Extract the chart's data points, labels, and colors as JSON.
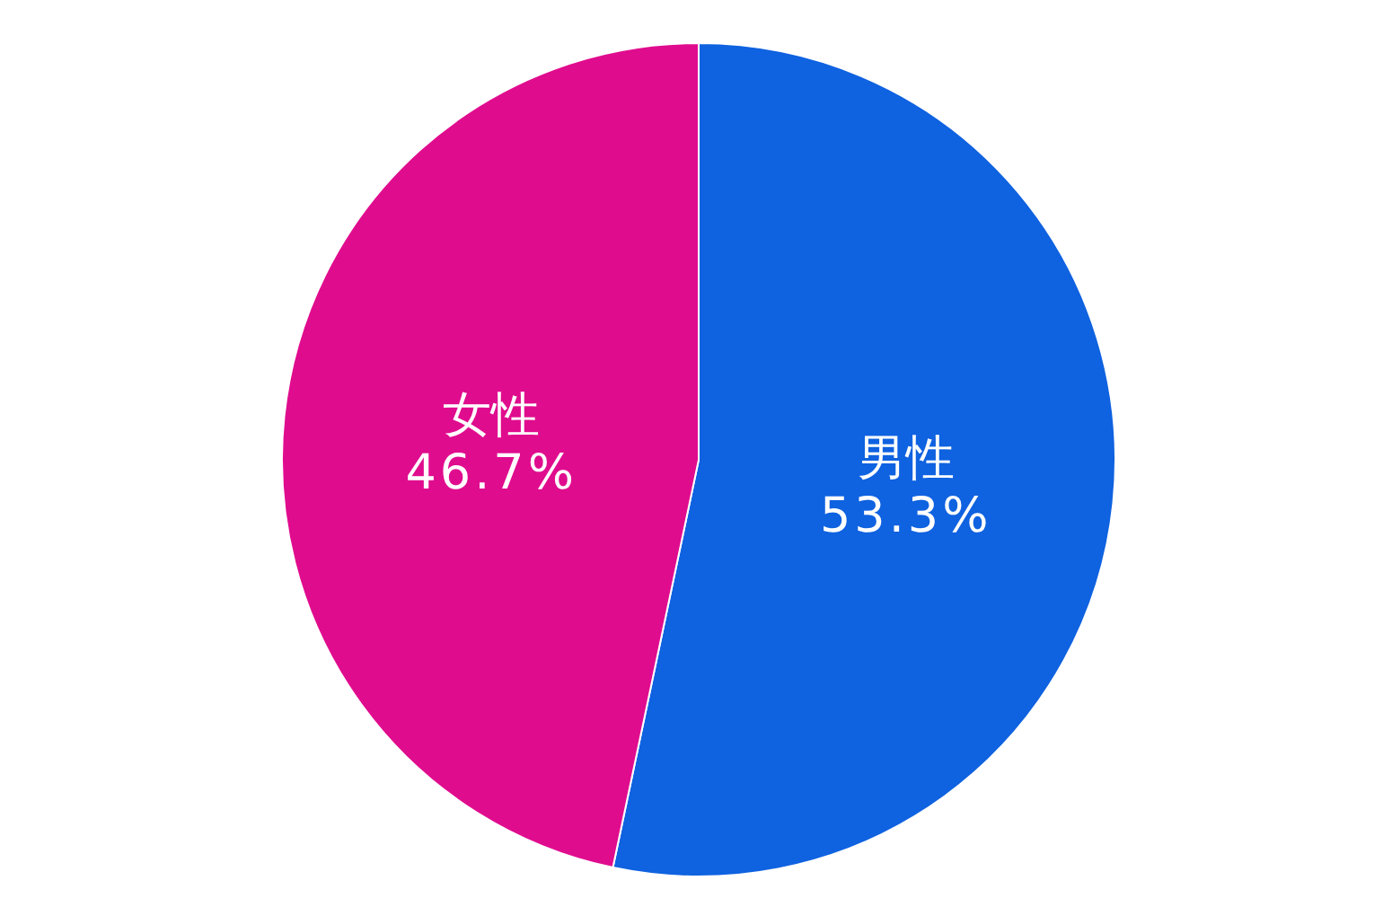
{
  "chart_data": {
    "type": "pie",
    "categories": [
      "男性",
      "女性"
    ],
    "values": [
      53.3,
      46.7
    ],
    "colors": [
      "#0f62e0",
      "#e00c8e"
    ],
    "value_labels": [
      "53.3%",
      "46.7%"
    ]
  }
}
